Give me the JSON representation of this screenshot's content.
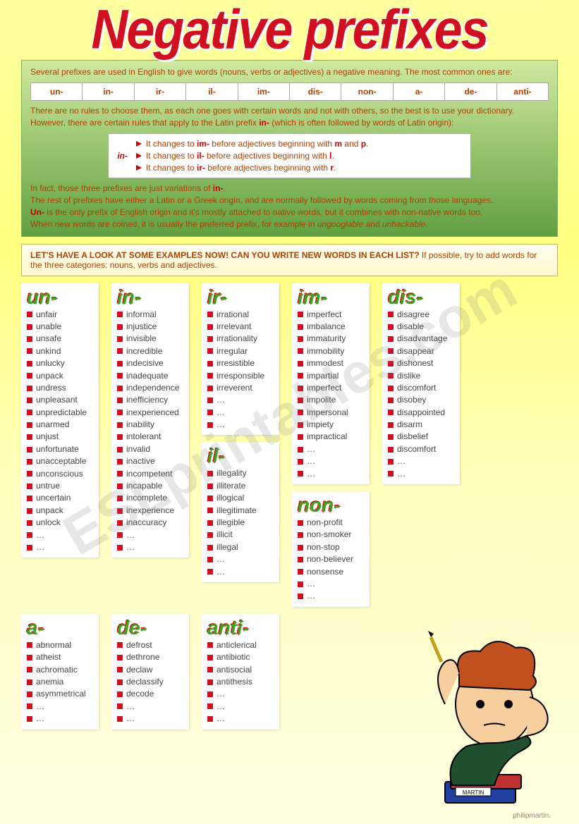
{
  "title": "Negative prefixes",
  "intro": {
    "line1": "Several prefixes are used in English to give words (nouns, verbs or adjectives) a negative meaning. The most common ones are:",
    "prefixes": [
      "un-",
      "in-",
      "ir-",
      "il-",
      "im-",
      "dis-",
      "non-",
      "a-",
      "de-",
      "anti-"
    ],
    "line2a": "There are no rules to choose them, as each one goes with certain words and not with others, so the best is to use your dictionary. However, there are certain rules that apply to the Latin prefix ",
    "line2b": " (which is often followed by words of Latin origin):",
    "in_label": "in-",
    "rules": [
      {
        "a": "It changes to ",
        "p": "im-",
        "b": " before adjectives beginning with ",
        "l1": "m",
        "and": " and ",
        "l2": "p",
        "end": "."
      },
      {
        "a": "It changes to ",
        "p": "il-",
        "b": " before adjectives beginning with ",
        "l1": "l",
        "and": "",
        "l2": "",
        "end": "."
      },
      {
        "a": "It changes to ",
        "p": "ir-",
        "b": " before adjectives beginning with ",
        "l1": "r",
        "and": "",
        "l2": "",
        "end": "."
      }
    ],
    "para2_1": "In fact, those three prefixes are just variations of ",
    "para2_in": "in-",
    "para2_2": ".",
    "para3": "The rest of prefixes have either a Latin or a Greek origin, and are normally followed by words coming from those languages.",
    "para4_1": "Un-",
    "para4_2": " is the only prefix of English origin and it's mostly attached to native words, but it combines with non-native words too.",
    "para5_1": "When new words are coined, it is usually the preferred prefix, for example in ",
    "para5_w1": "ungooglable",
    "para5_and": " and ",
    "para5_w2": "unhackable",
    "para5_end": "."
  },
  "exercise_title": "LET'S HAVE A LOOK AT SOME EXAMPLES NOW! CAN YOU WRITE NEW WORDS IN EACH LIST?",
  "exercise_sub": " If possible, try to add words for the three categories: nouns, verbs and adjectives.",
  "cols": {
    "un": {
      "h": "un-",
      "w": [
        "unfair",
        "unable",
        "unsafe",
        "unkind",
        "unlucky",
        "unpack",
        "undress",
        "unpleasant",
        "unpredictable",
        "unarmed",
        "unjust",
        "unfortunate",
        "unacceptable",
        "unconscious",
        "untrue",
        "uncertain",
        "unpack",
        "unlock",
        "…",
        "…"
      ]
    },
    "in": {
      "h": "in-",
      "w": [
        "informal",
        "injustice",
        "invisible",
        "incredible",
        "indecisive",
        "inadequate",
        "independence",
        "inefficiency",
        "inexperienced",
        "inability",
        "intolerant",
        "invalid",
        "inactive",
        "incompetent",
        "incapable",
        "incomplete",
        "inexperience",
        "inaccuracy",
        "…",
        "…"
      ]
    },
    "ir": {
      "h": "ir-",
      "w": [
        "irrational",
        "irrelevant",
        "irrationality",
        "irregular",
        "irresistible",
        "irresponsible",
        "irreverent",
        "…",
        "…",
        "…"
      ]
    },
    "il": {
      "h": "il-",
      "w": [
        "illegality",
        "illiterate",
        "illogical",
        "illegitimate",
        "illegible",
        "illicit",
        "illegal",
        "…",
        "…"
      ]
    },
    "im": {
      "h": "im-",
      "w": [
        "imperfect",
        "imbalance",
        "immaturity",
        "immobility",
        "immodest",
        "impartial",
        "imperfect",
        "impolite",
        "impersonal",
        "impiety",
        "impractical",
        "…",
        "…",
        "…"
      ]
    },
    "non": {
      "h": "non-",
      "w": [
        "non-profit",
        "non-smoker",
        "non-stop",
        "non-believer",
        "nonsense",
        "…",
        "…"
      ]
    },
    "dis": {
      "h": "dis-",
      "w": [
        "disagree",
        "disable",
        "disadvantage",
        "disappear",
        "dishonest",
        "dislike",
        "discomfort",
        "disobey",
        "disappointed",
        "disarm",
        "disbelief",
        "discomfort",
        "…",
        "…"
      ]
    },
    "a": {
      "h": "a-",
      "w": [
        "abnormal",
        "atheist",
        "achromatic",
        "anemia",
        "asymmetrical",
        "…",
        "…"
      ]
    },
    "de": {
      "h": "de-",
      "w": [
        "defrost",
        "dethrone",
        "declaw",
        "declassify",
        "decode",
        "…",
        "…"
      ]
    },
    "anti": {
      "h": "anti-",
      "w": [
        "anticlerical",
        "antibiotic",
        "antisocial",
        "antithesis",
        "…",
        "…",
        "…"
      ]
    }
  },
  "book_label": "MARTIN",
  "credit": "philipmartin.",
  "watermark": "ESLprintables.com",
  "colors": {
    "accent_red": "#d01020",
    "accent_green": "#40a020",
    "text_brown": "#b04000",
    "bg_yellow": "#ffff90"
  }
}
